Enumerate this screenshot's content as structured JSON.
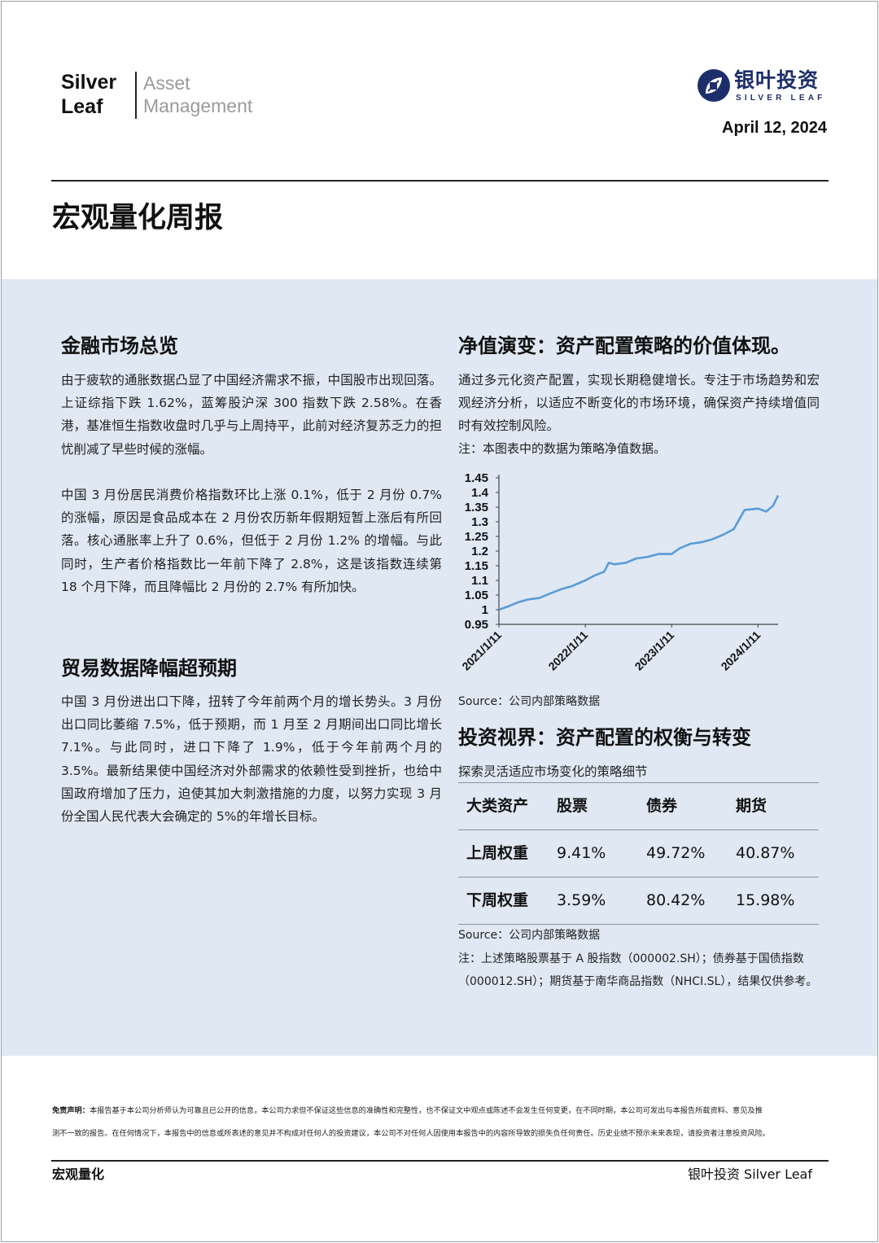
{
  "header": {
    "brand_line1": "Silver",
    "brand_line2": "Leaf",
    "brand_sub1": "Asset",
    "brand_sub2": "Management",
    "logo_cn": "银叶投资",
    "logo_en": "SILVER LEAF",
    "logo_color": "#1d2f6b",
    "date": "April 12, 2024"
  },
  "title": "宏观量化周报",
  "panel_color": "#dfe8f3",
  "left": {
    "section1": {
      "heading": "金融市场总览",
      "para1": "由于疲软的通胀数据凸显了中国经济需求不振，中国股市出现回落。上证综指下跌 1.62%，蓝筹股沪深 300 指数下跌 2.58%。在香港，基准恒生指数收盘时几乎与上周持平，此前对经济复苏乏力的担忧削减了早些时候的涨幅。",
      "para2": "中国 3 月份居民消费价格指数环比上涨 0.1%，低于 2 月份 0.7% 的涨幅，原因是食品成本在 2 月份农历新年假期短暂上涨后有所回落。核心通胀率上升了 0.6%，但低于 2 月份 1.2% 的增幅。与此同时，生产者价格指数比一年前下降了 2.8%，这是该指数连续第 18 个月下降，而且降幅比 2 月份的 2.7% 有所加快。"
    },
    "section2": {
      "heading": "贸易数据降幅超预期",
      "para1": "中国 3 月份进出口下降，扭转了今年前两个月的增长势头。3 月份出口同比萎缩 7.5%，低于预期，而 1 月至 2 月期间出口同比增长 7.1%。与此同时，进口下降了 1.9%，低于今年前两个月的 3.5%。最新结果使中国经济对外部需求的依赖性受到挫折，也给中国政府增加了压力，迫使其加大刺激措施的力度，以努力实现 3 月份全国人民代表大会确定的 5%的年增长目标。"
    }
  },
  "right": {
    "nav": {
      "heading": "净值演变：资产配置策略的价值体现。",
      "para": "通过多元化资产配置，实现长期稳健增长。专注于市场趋势和宏观经济分析，以适应不断变化的市场环境，确保资产持续增值同时有效控制风险。",
      "note": "注：本图表中的数据为策略净值数据。",
      "source": "Source：公司内部策略数据"
    },
    "alloc": {
      "heading": "投资视界：资产配置的权衡与转变",
      "subtitle": "探索灵活适应市场变化的策略细节",
      "columns": [
        "大类资产",
        "股票",
        "债券",
        "期货"
      ],
      "rows": [
        [
          "上周权重",
          "9.41%",
          "49.72%",
          "40.87%"
        ],
        [
          "下周权重",
          "3.59%",
          "80.42%",
          "15.98%"
        ]
      ],
      "source": "Source：公司内部策略数据",
      "note1": "注：上述策略股票基于 A 股指数（000002.SH）；债券基于国债指数",
      "note2": "（000012.SH）；期货基于南华商品指数（NHCI.SL），结果仅供参考。"
    }
  },
  "chart_data": {
    "type": "line",
    "title": "",
    "xlabel": "",
    "ylabel": "",
    "ylim": [
      0.95,
      1.45
    ],
    "yticks": [
      "1.45",
      "1.4",
      "1.35",
      "1.3",
      "1.25",
      "1.2",
      "1.15",
      "1.1",
      "1.05",
      "1",
      "0.95"
    ],
    "xticks": [
      "2021/1/11",
      "2022/1/11",
      "2023/1/11",
      "2024/1/11"
    ],
    "line_color": "#5b9bd5",
    "series": [
      {
        "x": [
          "2021-01-11",
          "2021-02-15",
          "2021-04-01",
          "2021-05-15",
          "2021-07-01",
          "2021-08-15",
          "2021-10-01",
          "2021-11-15",
          "2022-01-11",
          "2022-02-15",
          "2022-04-01",
          "2022-04-20",
          "2022-05-15",
          "2022-07-01",
          "2022-08-15",
          "2022-10-01",
          "2022-11-15",
          "2023-01-11",
          "2023-02-15",
          "2023-04-01",
          "2023-05-15",
          "2023-07-01",
          "2023-08-15",
          "2023-10-01",
          "2023-11-15",
          "2024-01-11",
          "2024-02-15",
          "2024-03-15",
          "2024-04-05"
        ],
        "values": [
          1.0,
          1.01,
          1.025,
          1.035,
          1.04,
          1.055,
          1.07,
          1.08,
          1.1,
          1.115,
          1.13,
          1.16,
          1.155,
          1.16,
          1.175,
          1.18,
          1.19,
          1.19,
          1.21,
          1.225,
          1.23,
          1.24,
          1.255,
          1.275,
          1.34,
          1.345,
          1.335,
          1.355,
          1.39
        ]
      }
    ]
  },
  "footer": {
    "disclaimer_label": "免责声明：",
    "disclaimer_line1": "本报告基于本公司分析师认为可靠且已公开的信息，本公司力求但不保证这些信息的准确性和完整性，也不保证文中观点或陈述不会发生任何变更，在不同时期，本公司可发出与本报告所载资料、意见及推",
    "disclaimer_line2": "测不一致的报告。在任何情况下，本报告中的信息或所表述的意见并不构成对任何人的投资建议，本公司不对任何人因使用本报告中的内容所导致的损失负任何责任。历史业绩不预示未来表现，请投资者注意投资风险。",
    "left": "宏观量化",
    "right": "银叶投资 Silver Leaf"
  }
}
